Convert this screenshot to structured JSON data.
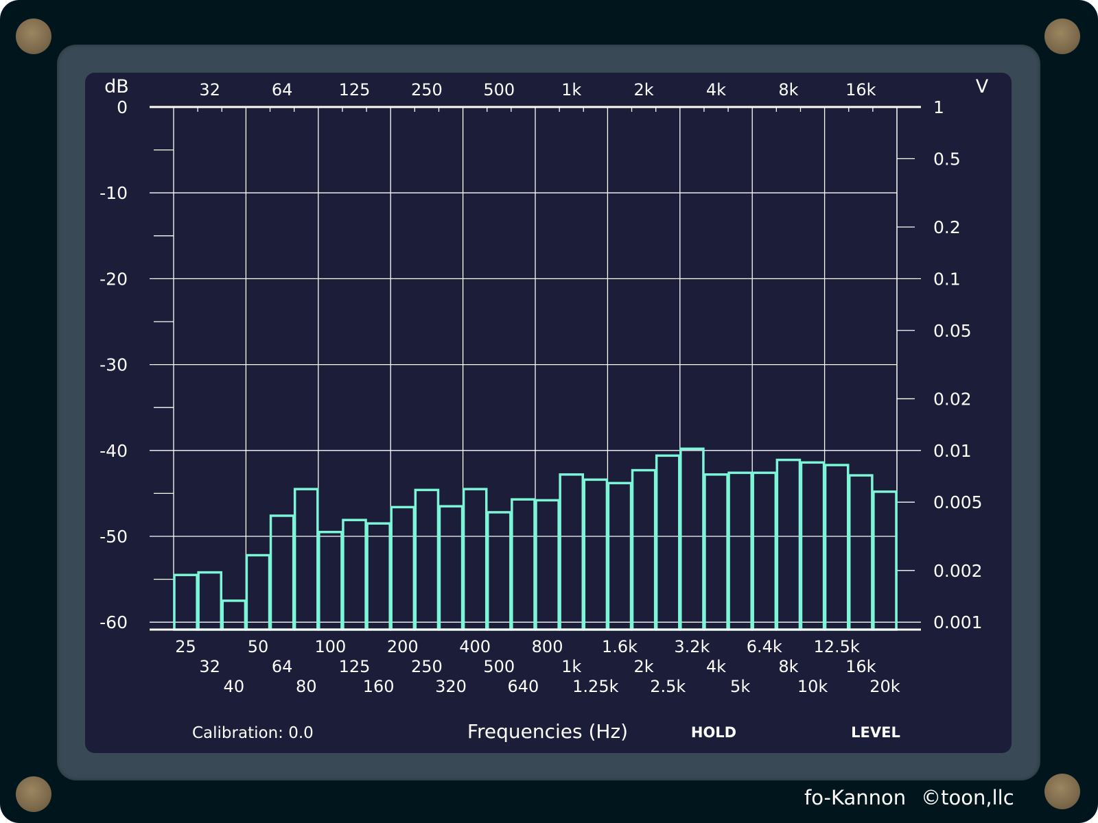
{
  "brand": {
    "product": "fo-Kannon",
    "copyright": "©toon,llc"
  },
  "controls": {
    "calibration_label": "Calibration: 0.0",
    "hold_label": "HOLD",
    "level_label": "LEVEL"
  },
  "colors": {
    "frame": "#01161c",
    "bezel": "#394955",
    "screen": "#1c1d38",
    "grid": "#ffffff",
    "bars": "#7df5d8",
    "screw": "#8a7555"
  },
  "chart_data": {
    "type": "bar",
    "categories": [
      "25",
      "32",
      "40",
      "50",
      "64",
      "80",
      "100",
      "125",
      "160",
      "200",
      "250",
      "320",
      "400",
      "500",
      "640",
      "800",
      "1k",
      "1.25k",
      "1.6k",
      "2k",
      "2.5k",
      "3.2k",
      "4k",
      "5k",
      "6.4k",
      "8k",
      "10k",
      "12.5k",
      "16k",
      "20k"
    ],
    "values": [
      -54.5,
      -54.2,
      -57.5,
      -52.2,
      -47.6,
      -44.5,
      -49.5,
      -48.1,
      -48.5,
      -46.6,
      -44.6,
      -46.5,
      -44.5,
      -47.2,
      -45.7,
      -45.8,
      -42.8,
      -43.4,
      -43.8,
      -42.3,
      -40.6,
      -39.8,
      -42.8,
      -42.6,
      -42.6,
      -41.1,
      -41.4,
      -41.7,
      -42.9,
      -44.8
    ],
    "xlabel": "Frequencies (Hz)",
    "ylabel_left": "dB",
    "ylabel_right": "V",
    "ylim": [
      -62.5,
      0
    ],
    "y_ticks_left": [
      "0",
      "-10",
      "-20",
      "-30",
      "-40",
      "-50",
      "-60"
    ],
    "y_ticks_right": [
      "1",
      "0.5",
      "0.2",
      "0.1",
      "0.05",
      "0.02",
      "0.01",
      "0.005",
      "0.002",
      "0.001"
    ],
    "top_tick_labels": [
      "32",
      "64",
      "125",
      "250",
      "500",
      "1k",
      "2k",
      "4k",
      "8k",
      "16k"
    ],
    "bottom_tick_rows": [
      [
        "25",
        "50",
        "100",
        "200",
        "400",
        "800",
        "1.6k",
        "3.2k",
        "6.4k",
        "12.5k"
      ],
      [
        "32",
        "64",
        "125",
        "250",
        "500",
        "1k",
        "2k",
        "4k",
        "8k",
        "16k"
      ],
      [
        "40",
        "80",
        "160",
        "320",
        "640",
        "1.25k",
        "2.5k",
        "5k",
        "10k",
        "20k"
      ]
    ],
    "grid": true,
    "legend": "none"
  }
}
